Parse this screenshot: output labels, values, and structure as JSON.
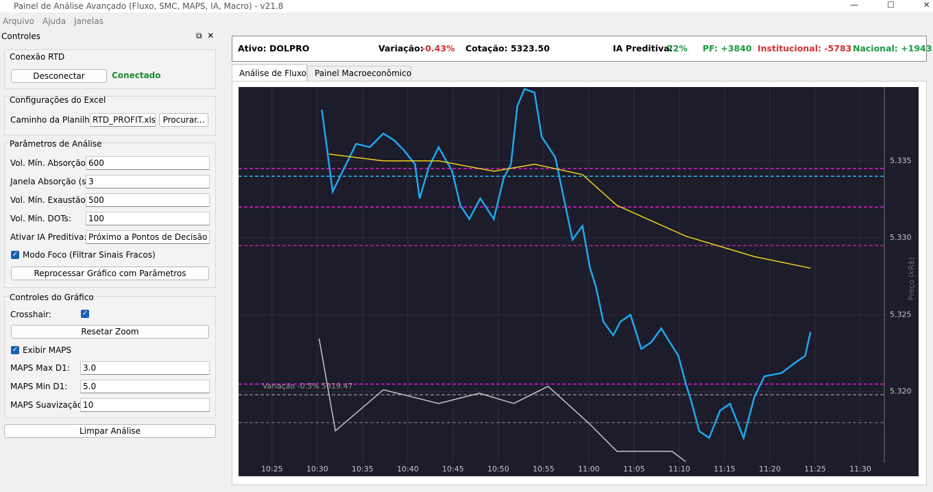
{
  "window": {
    "title": "Painel de Análise Avançado (Fluxo, SMC, MAPS, IA, Macro) - v21.8"
  },
  "menu": [
    "Arquivo",
    "Ajuda",
    "Janelas"
  ],
  "panel": {
    "title": "Controles",
    "rtd": {
      "title": "Conexão RTD",
      "button": "Desconectar",
      "status": "Conectado"
    },
    "excel": {
      "title": "Configurações do Excel",
      "label": "Caminho da Planilha:",
      "value": "RTD_PROFIT.xlsx",
      "button": "Procurar..."
    },
    "params": {
      "title": "Parâmetros de Análise",
      "fields": [
        {
          "label": "Vol. Mín. Absorção:",
          "value": "600"
        },
        {
          "label": "Janela Absorção (s):",
          "value": "3"
        },
        {
          "label": "Vol. Mín. Exaustão:",
          "value": "500"
        },
        {
          "label": "Vol. Mín. DOTs:",
          "value": "100"
        },
        {
          "label": "Ativar IA Preditiva:",
          "value": "Próximo a Pontos de Decisão"
        }
      ],
      "focus": {
        "label": "Modo Foco (Filtrar Sinais Fracos)",
        "checked": true
      },
      "button": "Reprocessar Gráfico com Parâmetros"
    },
    "graph": {
      "title": "Controles do Gráfico",
      "crosshair": {
        "label": "Crosshair:",
        "checked": true
      },
      "reset": "Resetar Zoom",
      "maps": {
        "label": "Exibir MAPS",
        "checked": true
      },
      "fields": [
        {
          "label": "MAPS Max D1:",
          "value": "3.0"
        },
        {
          "label": "MAPS Min D1:",
          "value": "5.0"
        },
        {
          "label": "MAPS Suavização:",
          "value": "10"
        }
      ]
    },
    "clear": "Limpar Análise"
  },
  "header": {
    "asset": "Ativo: DOLPRO",
    "variation_label": "Variação:",
    "variation": "-0.43%",
    "quote": "Cotação: 5323.50",
    "ia_label": "IA Preditiva:",
    "ia": "72%",
    "pf": "PF: +3840",
    "inst": "Institucional: -5783",
    "nac": "Nacional: +1943"
  },
  "tabs": [
    "Análise de Fluxo",
    "Painel Macroeconômico"
  ],
  "chart_data": {
    "type": "line",
    "y_label": "Preço (kR$)",
    "annotation": "Variação -0.5% 5319.47",
    "xlim": [
      621.3,
      692.65
    ],
    "ylim": [
      5.3154,
      5.3398
    ],
    "xticks": [
      {
        "value": 625,
        "label": "10:25"
      },
      {
        "value": 630,
        "label": "10:30"
      },
      {
        "value": 635,
        "label": "10:35"
      },
      {
        "value": 640,
        "label": "10:40"
      },
      {
        "value": 645,
        "label": "10:45"
      },
      {
        "value": 650,
        "label": "10:50"
      },
      {
        "value": 655,
        "label": "10:55"
      },
      {
        "value": 660,
        "label": "11:00"
      },
      {
        "value": 665,
        "label": "11:05"
      },
      {
        "value": 670,
        "label": "11:10"
      },
      {
        "value": 675,
        "label": "11:15"
      },
      {
        "value": 680,
        "label": "11:20"
      },
      {
        "value": 685,
        "label": "11:25"
      },
      {
        "value": 690,
        "label": "11:30"
      }
    ],
    "yticks": [
      {
        "value": 5.32,
        "label": "5.320"
      },
      5.325,
      {
        "value": 5.33,
        "label": "5.330"
      },
      5.335
    ],
    "grid": true,
    "levels": [
      {
        "value": 5.3345,
        "color": "#e020d0"
      },
      {
        "value": 5.334,
        "color": "#30b8f0"
      },
      {
        "value": 5.332,
        "color": "#e020d0"
      },
      {
        "value": 5.3295,
        "color": "#b02a90"
      },
      {
        "value": 5.3205,
        "color": "#e020d0"
      },
      {
        "value": 5.3198,
        "color": "#888888"
      },
      {
        "value": 5.318,
        "color": "#666666"
      }
    ],
    "series": [
      {
        "color": "#1fa8f0",
        "x": [
          630.5,
          631.3,
          631.7,
          632.8,
          634.3,
          635.8,
          637.3,
          638.5,
          639.6,
          640.8,
          641.3,
          642.3,
          643.4,
          644.9,
          645.8,
          646.8,
          648.0,
          649.5,
          650.6,
          651.4,
          652.1,
          652.9,
          654.0,
          654.8,
          656.3,
          657.4,
          658.2,
          659.3,
          660.1,
          660.8,
          661.6,
          662.7,
          663.5,
          664.6,
          665.8,
          666.9,
          668.0,
          669.9,
          670.7,
          671.4,
          672.2,
          673.3,
          674.5,
          675.6,
          677.1,
          678.3,
          679.4,
          681.3,
          682.8,
          683.9,
          684.5
        ],
        "values": [
          5.33833,
          5.33478,
          5.333,
          5.33433,
          5.33611,
          5.33589,
          5.33678,
          5.33633,
          5.33567,
          5.33478,
          5.33256,
          5.33456,
          5.33589,
          5.33433,
          5.33211,
          5.33122,
          5.33256,
          5.33122,
          5.33389,
          5.33478,
          5.33856,
          5.33967,
          5.33944,
          5.33656,
          5.33522,
          5.33211,
          5.32989,
          5.33078,
          5.32811,
          5.32678,
          5.32456,
          5.32367,
          5.32456,
          5.325,
          5.32278,
          5.32322,
          5.32411,
          5.32233,
          5.32056,
          5.31922,
          5.31744,
          5.317,
          5.31878,
          5.31922,
          5.317,
          5.31967,
          5.321,
          5.32122,
          5.32189,
          5.32233,
          5.32389
        ]
      },
      {
        "color": "#f0d020",
        "x": [
          631.3,
          637.3,
          643.4,
          649.5,
          654.0,
          659.3,
          663.1,
          670.7,
          678.3,
          684.5
        ],
        "values": [
          5.33544,
          5.335,
          5.335,
          5.33433,
          5.33478,
          5.33411,
          5.33211,
          5.33011,
          5.32878,
          5.32803
        ]
      },
      {
        "color": "#c8c8c8",
        "x": [
          630.2,
          632.0,
          637.3,
          643.4,
          647.9,
          651.7,
          655.5,
          660.1,
          663.1,
          669.2,
          670.7
        ],
        "values": [
          5.32346,
          5.31746,
          5.32013,
          5.31924,
          5.3199,
          5.31924,
          5.32035,
          5.3179,
          5.31613,
          5.31613,
          5.31546
        ]
      }
    ]
  }
}
